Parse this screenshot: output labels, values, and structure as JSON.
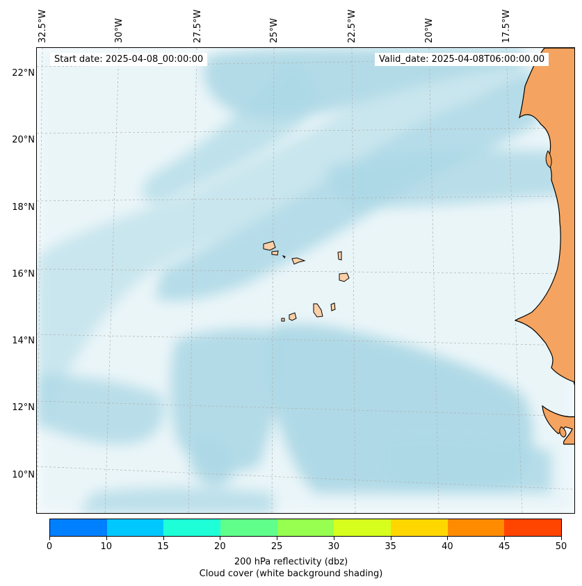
{
  "map": {
    "start_date": "Start date: 2025-04-08_00:00:00",
    "valid_date": "Valid_date: 2025-04-08T06:00:00.00",
    "lon_labels": [
      "32.5°W",
      "30°W",
      "27.5°W",
      "25°W",
      "22.5°W",
      "20°W",
      "17.5°W"
    ],
    "lat_labels": [
      "22°N",
      "20°N",
      "18°N",
      "16°N",
      "14°N",
      "12°N",
      "10°N"
    ],
    "colors": {
      "cloud": "#add8e6",
      "land": "#f4a460",
      "land_light": "#fbd0a8",
      "coast": "#000000",
      "grid": "#b0b0b0"
    }
  },
  "colorbar": {
    "segment_colors": [
      "#0080ff",
      "#00c8ff",
      "#1effd8",
      "#60ff8c",
      "#96ff50",
      "#d7ff1e",
      "#ffd700",
      "#ff8c00",
      "#ff4500"
    ],
    "tick_labels": [
      "0",
      "10",
      "15",
      "20",
      "25",
      "30",
      "35",
      "40",
      "45",
      "50"
    ],
    "label_line1": "200 hPa reflectivity (dbz)",
    "label_line2": "Cloud cover (white background shading)"
  }
}
